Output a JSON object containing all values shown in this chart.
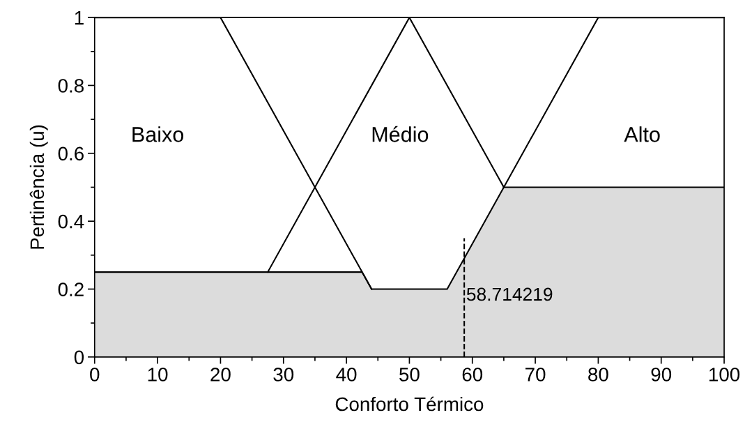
{
  "chart_data": {
    "type": "line",
    "xlabel": "Conforto Térmico",
    "ylabel": "Pertinência (u)",
    "xlim": [
      0,
      100
    ],
    "ylim": [
      0,
      1
    ],
    "xticks": [
      0,
      10,
      20,
      30,
      40,
      50,
      60,
      70,
      80,
      90,
      100
    ],
    "yticks": [
      0,
      0.2,
      0.4,
      0.6,
      0.8,
      1
    ],
    "grid": false,
    "marker": "none",
    "line_style": "solid",
    "series": [
      {
        "type": "area",
        "color": "#dcdcdc",
        "x": [
          0,
          42.5,
          44,
          56,
          65,
          100
        ],
        "values": [
          0.25,
          0.25,
          0.2,
          0.2,
          0.5,
          0.5
        ]
      },
      {
        "color": "#000000",
        "x": [
          0,
          20,
          44
        ],
        "values": [
          1,
          1,
          0.2
        ]
      },
      {
        "color": "#000000",
        "x": [
          27.5,
          50,
          65
        ],
        "values": [
          0.25,
          1,
          0.5
        ]
      },
      {
        "color": "#000000",
        "x": [
          65,
          80,
          100
        ],
        "values": [
          0.5,
          1,
          1
        ]
      }
    ],
    "annotations": [
      "Baixo",
      "Médio",
      "Alto"
    ],
    "ref_lines": [
      {
        "axis": "x",
        "value": 58.714219,
        "label": "58.714219",
        "color": "#000000",
        "line_style": "dashed"
      }
    ]
  }
}
